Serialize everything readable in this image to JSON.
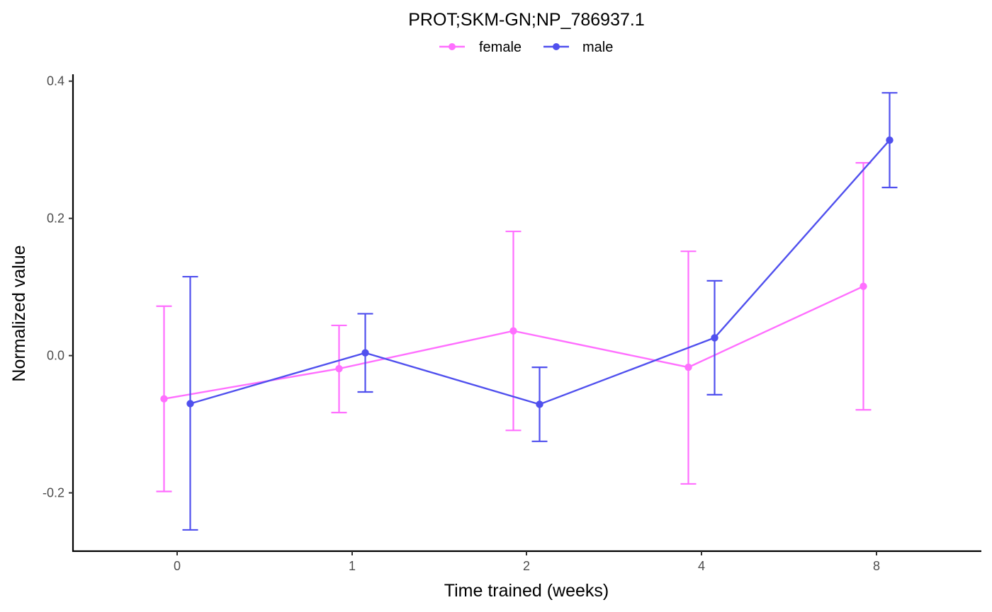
{
  "chart_data": {
    "type": "line",
    "title": "PROT;SKM-GN;NP_786937.1",
    "xlabel": "Time trained (weeks)",
    "ylabel": "Normalized value",
    "categories": [
      "0",
      "1",
      "2",
      "4",
      "8"
    ],
    "ylim": [
      -0.285,
      0.41
    ],
    "yticks": [
      -0.2,
      0.0,
      0.2,
      0.4
    ],
    "ytick_labels": [
      "-0.2",
      "0.0",
      "0.2",
      "0.4"
    ],
    "grid": false,
    "legend": {
      "position": "top",
      "entries": [
        "female",
        "male"
      ]
    },
    "series": [
      {
        "name": "female",
        "color": "#ff6fff",
        "values": [
          -0.063,
          -0.019,
          0.036,
          -0.017,
          0.101
        ],
        "error_low": [
          -0.198,
          -0.083,
          -0.109,
          -0.187,
          -0.079
        ],
        "error_high": [
          0.072,
          0.044,
          0.181,
          0.152,
          0.281
        ]
      },
      {
        "name": "male",
        "color": "#5050ee",
        "values": [
          -0.07,
          0.004,
          -0.071,
          0.026,
          0.314
        ],
        "error_low": [
          -0.254,
          -0.053,
          -0.125,
          -0.057,
          0.245
        ],
        "error_high": [
          0.115,
          0.061,
          -0.017,
          0.109,
          0.383
        ]
      }
    ]
  }
}
